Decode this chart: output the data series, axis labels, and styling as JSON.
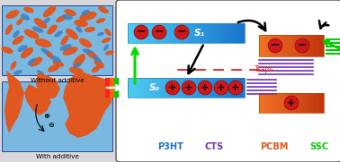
{
  "bg_color": "#d8d8d8",
  "left_panel_bg": "#7ab8e0",
  "orange": "#e05820",
  "blue_blob": "#4080c0",
  "p3ht_color_l": "#40c0f0",
  "p3ht_color_r": "#1878c0",
  "pcbm_color_l": "#f07030",
  "pcbm_color_r": "#c03000",
  "green_arrow": "#00dd00",
  "trap_color": "#e02020",
  "purple_color": "#7030b0",
  "green_line": "#00cc00",
  "label_p3ht": "#1870c0",
  "label_cts": "#7030b0",
  "label_pcbm": "#e05820",
  "label_ssc": "#00cc00",
  "s1_label": "S₁",
  "s0_label": "S₀",
  "traps_label": "Traps",
  "p3ht_label": "P3HT",
  "cts_label": "CTS",
  "pcbm_label": "PCBM",
  "ssc_label": "SSC",
  "without_label": "Without additive",
  "with_label": "With additive"
}
